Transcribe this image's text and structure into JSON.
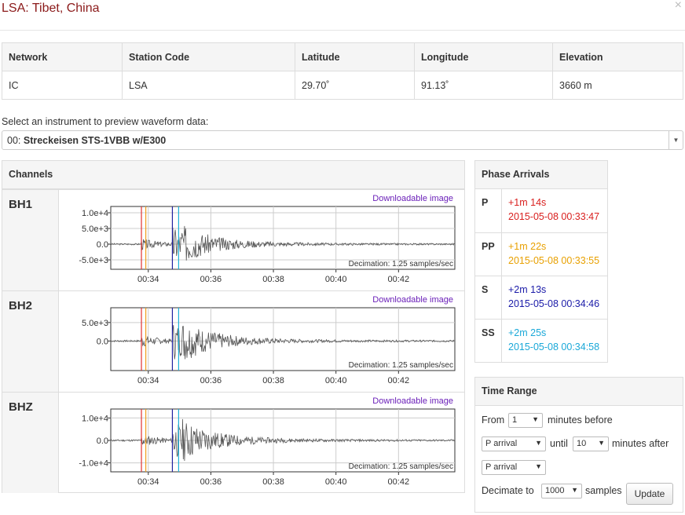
{
  "dialog": {
    "title": "LSA: Tibet, China",
    "close": "×"
  },
  "station_table": {
    "headers": [
      "Network",
      "Station Code",
      "Latitude",
      "Longitude",
      "Elevation"
    ],
    "values": [
      "IC",
      "LSA",
      "29.70˚",
      "91.13˚",
      "3660 m"
    ]
  },
  "instrument": {
    "label": "Select an instrument to preview waveform data:",
    "prefix": "00: ",
    "selected": "Streckeisen STS-1VBB w/E300"
  },
  "channels_panel": {
    "title": "Channels",
    "download_label": "Downloadable image",
    "decimation": "Decimation: 1.25 samples/sec"
  },
  "channels": [
    {
      "name": "BH1",
      "yticks": [
        "1.0e+4",
        "5.0e+3",
        "0.0",
        "-5.0e+3"
      ],
      "ytick_values": [
        10000,
        5000,
        0,
        -5000
      ],
      "ylim": [
        -8000,
        12000
      ],
      "amp": 6500,
      "seed": 3
    },
    {
      "name": "BH2",
      "yticks": [
        "5.0e+3",
        "0.0"
      ],
      "ytick_values": [
        5000,
        0
      ],
      "ylim": [
        -8000,
        9000
      ],
      "amp": 6000,
      "seed": 7
    },
    {
      "name": "BHZ",
      "yticks": [
        "1.0e+4",
        "0.0",
        "-1.0e+4"
      ],
      "ytick_values": [
        10000,
        0,
        -10000
      ],
      "ylim": [
        -14000,
        14000
      ],
      "amp": 10000,
      "seed": 11
    }
  ],
  "chart_data": {
    "type": "line",
    "x_ticks": [
      "00:34",
      "00:36",
      "00:38",
      "00:40",
      "00:42"
    ],
    "xlim_minutes": [
      32.8,
      43.8
    ],
    "phase_markers": [
      {
        "phase": "P",
        "minute": 33.78,
        "color": "#e03030"
      },
      {
        "phase": "PP",
        "minute": 33.92,
        "color": "#f0a020"
      },
      {
        "phase": "S",
        "minute": 34.77,
        "color": "#2020a0"
      },
      {
        "phase": "SS",
        "minute": 34.97,
        "color": "#20b0d8"
      }
    ]
  },
  "phase_panel": {
    "title": "Phase Arrivals",
    "items": [
      {
        "phase": "P",
        "relative": "+1m 14s",
        "absolute": "2015-05-08 00:33:47",
        "color": "#d9201f"
      },
      {
        "phase": "PP",
        "relative": "+1m 22s",
        "absolute": "2015-05-08 00:33:55",
        "color": "#e8a000"
      },
      {
        "phase": "S",
        "relative": "+2m 13s",
        "absolute": "2015-05-08 00:34:46",
        "color": "#1a1aa8"
      },
      {
        "phase": "SS",
        "relative": "+2m 25s",
        "absolute": "2015-05-08 00:34:58",
        "color": "#1aa8d8"
      }
    ]
  },
  "time_range": {
    "title": "Time Range",
    "from_label": "From",
    "from_value": "1",
    "before_label": "minutes before",
    "start_phase": "P arrival",
    "until_label": "until",
    "until_value": "10",
    "after_label": "minutes after",
    "end_phase": "P arrival",
    "decimate_label": "Decimate to",
    "decimate_value": "1000",
    "samples_label": "samples",
    "update_label": "Update"
  }
}
